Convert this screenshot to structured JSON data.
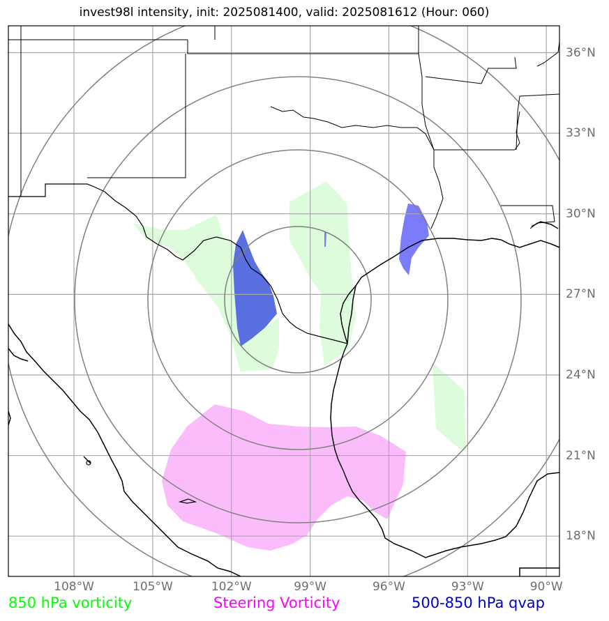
{
  "title": "invest98l intensity, init: 2025081400, valid: 2025081612 (Hour: 060)",
  "map": {
    "lon_range": [
      -110.5,
      -89.5
    ],
    "lat_range": [
      16.5,
      37.0
    ],
    "lon_ticks": [
      {
        "value": -108,
        "label": "108°W"
      },
      {
        "value": -105,
        "label": "105°W"
      },
      {
        "value": -102,
        "label": "102°W"
      },
      {
        "value": -99,
        "label": "99°W"
      },
      {
        "value": -96,
        "label": "96°W"
      },
      {
        "value": -93,
        "label": "93°W"
      },
      {
        "value": -90,
        "label": "90°W"
      }
    ],
    "lat_ticks": [
      {
        "value": 36,
        "label": "36°N"
      },
      {
        "value": 33,
        "label": "33°N"
      },
      {
        "value": 30,
        "label": "30°N"
      },
      {
        "value": 27,
        "label": "27°N"
      },
      {
        "value": 24,
        "label": "24°N"
      },
      {
        "value": 21,
        "label": "21°N"
      },
      {
        "value": 18,
        "label": "18°N"
      }
    ],
    "range_rings_center": {
      "lon": -99.0,
      "lat": 26.5
    },
    "range_rings_count": 4
  },
  "legend": [
    {
      "label": "850 hPa vorticity",
      "color": "#00ff00"
    },
    {
      "label": "Steering Vorticity",
      "color": "#ff00ff"
    },
    {
      "label": "500-850 hPa qvap",
      "color": "#0000cc"
    }
  ],
  "colors": {
    "vorticity_850_fill": "#dcfcdc",
    "steering_vorticity_fill": "#fbbcfb",
    "qvap_fill": "#5a6fe0",
    "qvap_fill_alt": "#7c7cfb",
    "grid": "#a9a9a9",
    "rings": "#808080",
    "coastline": "#000000"
  }
}
